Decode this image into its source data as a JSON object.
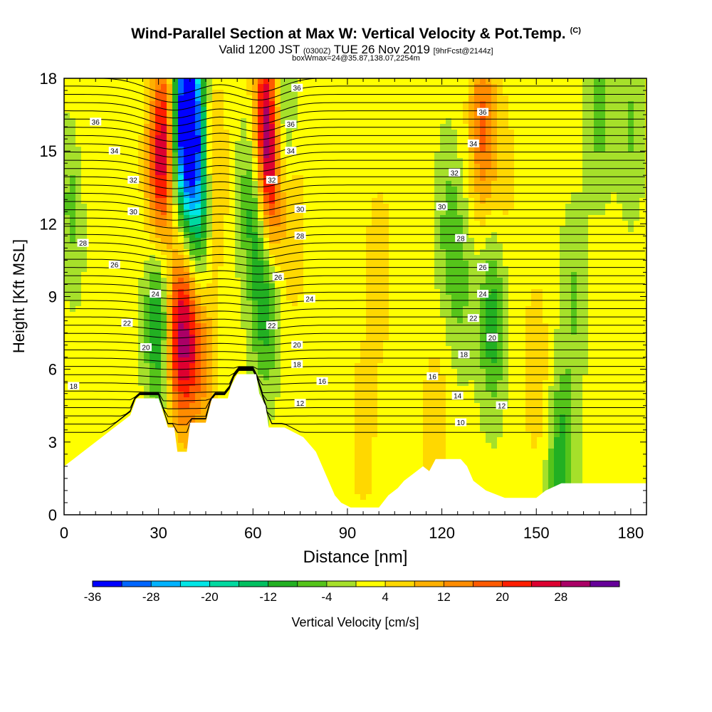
{
  "header": {
    "title": "Wind-Parallel Section at Max W: Vertical Velocity & Pot.Temp.",
    "copyright": "(C)",
    "valid_prefix": "Valid 1200 JST",
    "valid_utc": "(0300Z)",
    "valid_date": "TUE 26 Nov 2019",
    "forecast": "[9hrFcst@2144z]",
    "box_info": "boxWmax=24@35.87,138.07,2254m"
  },
  "chart_data": {
    "type": "heatmap",
    "xlabel": "Distance [nm]",
    "ylabel": "Height [Kft MSL]",
    "xlim": [
      0,
      185
    ],
    "ylim": [
      0,
      18
    ],
    "x_ticks": [
      0,
      30,
      60,
      90,
      120,
      150,
      180
    ],
    "y_ticks": [
      0,
      3,
      6,
      9,
      12,
      15,
      18
    ],
    "colorbar": {
      "label": "Vertical Velocity [cm/s]",
      "tick_labels": [
        "-36",
        "-28",
        "-20",
        "-12",
        "-4",
        "4",
        "12",
        "20",
        "28"
      ],
      "levels": [
        -36,
        -32,
        -28,
        -24,
        -20,
        -16,
        -12,
        -8,
        -4,
        0,
        4,
        8,
        12,
        16,
        20,
        24,
        28,
        32
      ],
      "colors": [
        "#0000ff",
        "#0066ff",
        "#00b2ff",
        "#00e6e6",
        "#00d9a0",
        "#00c060",
        "#22b022",
        "#55c41a",
        "#a6e02a",
        "#ffff00",
        "#ffd800",
        "#ffb000",
        "#ff8c00",
        "#ff5a00",
        "#ff1e00",
        "#dd0030",
        "#aa0066",
        "#660099"
      ]
    },
    "terrain_kft": [
      [
        0,
        2.0
      ],
      [
        3,
        2.3
      ],
      [
        6,
        2.6
      ],
      [
        9,
        2.9
      ],
      [
        12,
        3.2
      ],
      [
        15,
        3.5
      ],
      [
        18,
        3.8
      ],
      [
        21,
        4.1
      ],
      [
        23,
        4.8
      ],
      [
        30,
        4.8
      ],
      [
        33,
        3.6
      ],
      [
        35,
        3.6
      ],
      [
        36,
        2.6
      ],
      [
        39,
        2.6
      ],
      [
        40,
        3.8
      ],
      [
        45,
        3.8
      ],
      [
        47,
        4.8
      ],
      [
        52,
        4.8
      ],
      [
        53,
        5.3
      ],
      [
        55,
        5.8
      ],
      [
        61,
        5.8
      ],
      [
        62,
        5.0
      ],
      [
        64,
        4.5
      ],
      [
        65,
        3.6
      ],
      [
        70,
        3.6
      ],
      [
        76,
        3.2
      ],
      [
        78,
        2.9
      ],
      [
        80,
        2.6
      ],
      [
        81,
        2.3
      ],
      [
        82,
        2.0
      ],
      [
        84,
        1.4
      ],
      [
        86,
        0.8
      ],
      [
        88,
        0.5
      ],
      [
        91,
        0.3
      ],
      [
        100,
        0.3
      ],
      [
        103,
        0.8
      ],
      [
        106,
        1.1
      ],
      [
        108,
        1.4
      ],
      [
        111,
        1.7
      ],
      [
        114,
        2.0
      ],
      [
        116,
        1.8
      ],
      [
        118,
        2.3
      ],
      [
        126,
        2.3
      ],
      [
        128,
        2.0
      ],
      [
        130,
        1.4
      ],
      [
        134,
        1.0
      ],
      [
        140,
        0.7
      ],
      [
        150,
        0.7
      ],
      [
        153,
        1.0
      ],
      [
        158,
        1.3
      ],
      [
        185,
        1.3
      ]
    ],
    "velocity_features": [
      {
        "x": 3,
        "y": 13,
        "w": -8
      },
      {
        "x": 6,
        "y": 15,
        "w": 4
      },
      {
        "x": 30,
        "y": 14,
        "w": 16
      },
      {
        "x": 33,
        "y": 16,
        "w": 20
      },
      {
        "x": 37,
        "y": 16,
        "w": -24
      },
      {
        "x": 40,
        "y": 16.5,
        "w": -32
      },
      {
        "x": 43,
        "y": 13,
        "w": -20
      },
      {
        "x": 47,
        "y": 14,
        "w": 12
      },
      {
        "x": 30,
        "y": 8,
        "w": -16
      },
      {
        "x": 36,
        "y": 7.5,
        "w": 20
      },
      {
        "x": 40,
        "y": 7,
        "w": 16
      },
      {
        "x": 45,
        "y": 6.5,
        "w": 8
      },
      {
        "x": 60,
        "y": 13,
        "w": -12
      },
      {
        "x": 64,
        "y": 16.5,
        "w": 24
      },
      {
        "x": 66,
        "y": 13.5,
        "w": 20
      },
      {
        "x": 69,
        "y": 16,
        "w": -12
      },
      {
        "x": 64,
        "y": 9,
        "w": -14
      },
      {
        "x": 73,
        "y": 12,
        "w": 6
      },
      {
        "x": 100,
        "y": 10,
        "w": 6
      },
      {
        "x": 122,
        "y": 12,
        "w": -6
      },
      {
        "x": 126,
        "y": 9.5,
        "w": -6
      },
      {
        "x": 133,
        "y": 16,
        "w": 16
      },
      {
        "x": 136,
        "y": 8,
        "w": -12
      },
      {
        "x": 140,
        "y": 14,
        "w": 4
      },
      {
        "x": 162,
        "y": 9,
        "w": -6
      },
      {
        "x": 170,
        "y": 17,
        "w": -8
      },
      {
        "x": 180,
        "y": 16,
        "w": -6
      },
      {
        "x": 158,
        "y": 2.2,
        "w": -12
      },
      {
        "x": 150,
        "y": 6,
        "w": 6
      },
      {
        "x": 95,
        "y": 3.5,
        "w": 5
      },
      {
        "x": 118,
        "y": 3.5,
        "w": 6
      }
    ],
    "theta_labels": [
      {
        "x": 3,
        "y": 5.3,
        "text": "18"
      },
      {
        "x": 26,
        "y": 6.9,
        "text": "20"
      },
      {
        "x": 20,
        "y": 7.9,
        "text": "22"
      },
      {
        "x": 29,
        "y": 9.1,
        "text": "24"
      },
      {
        "x": 16,
        "y": 10.3,
        "text": "26"
      },
      {
        "x": 6,
        "y": 11.2,
        "text": "28"
      },
      {
        "x": 22,
        "y": 12.5,
        "text": "30"
      },
      {
        "x": 22,
        "y": 13.8,
        "text": "32"
      },
      {
        "x": 16,
        "y": 15.0,
        "text": "34"
      },
      {
        "x": 10,
        "y": 16.2,
        "text": "36"
      },
      {
        "x": 75,
        "y": 4.6,
        "text": "12"
      },
      {
        "x": 82,
        "y": 5.5,
        "text": "16"
      },
      {
        "x": 74,
        "y": 6.2,
        "text": "18"
      },
      {
        "x": 74,
        "y": 7.0,
        "text": "20"
      },
      {
        "x": 66,
        "y": 7.8,
        "text": "22"
      },
      {
        "x": 78,
        "y": 8.9,
        "text": "24"
      },
      {
        "x": 68,
        "y": 9.8,
        "text": "26"
      },
      {
        "x": 75,
        "y": 11.5,
        "text": "28"
      },
      {
        "x": 75,
        "y": 12.6,
        "text": "30"
      },
      {
        "x": 66,
        "y": 13.8,
        "text": "32"
      },
      {
        "x": 72,
        "y": 15.0,
        "text": "34"
      },
      {
        "x": 72,
        "y": 16.1,
        "text": "36"
      },
      {
        "x": 74,
        "y": 17.6,
        "text": "36"
      },
      {
        "x": 126,
        "y": 3.8,
        "text": "10"
      },
      {
        "x": 125,
        "y": 4.9,
        "text": "14"
      },
      {
        "x": 117,
        "y": 5.7,
        "text": "16"
      },
      {
        "x": 127,
        "y": 6.6,
        "text": "18"
      },
      {
        "x": 139,
        "y": 4.5,
        "text": "12"
      },
      {
        "x": 136,
        "y": 7.3,
        "text": "20"
      },
      {
        "x": 130,
        "y": 8.1,
        "text": "22"
      },
      {
        "x": 133,
        "y": 9.1,
        "text": "24"
      },
      {
        "x": 133,
        "y": 10.2,
        "text": "26"
      },
      {
        "x": 126,
        "y": 11.4,
        "text": "28"
      },
      {
        "x": 120,
        "y": 12.7,
        "text": "30"
      },
      {
        "x": 124,
        "y": 14.1,
        "text": "32"
      },
      {
        "x": 130,
        "y": 15.3,
        "text": "34"
      },
      {
        "x": 133,
        "y": 16.6,
        "text": "36"
      }
    ]
  }
}
